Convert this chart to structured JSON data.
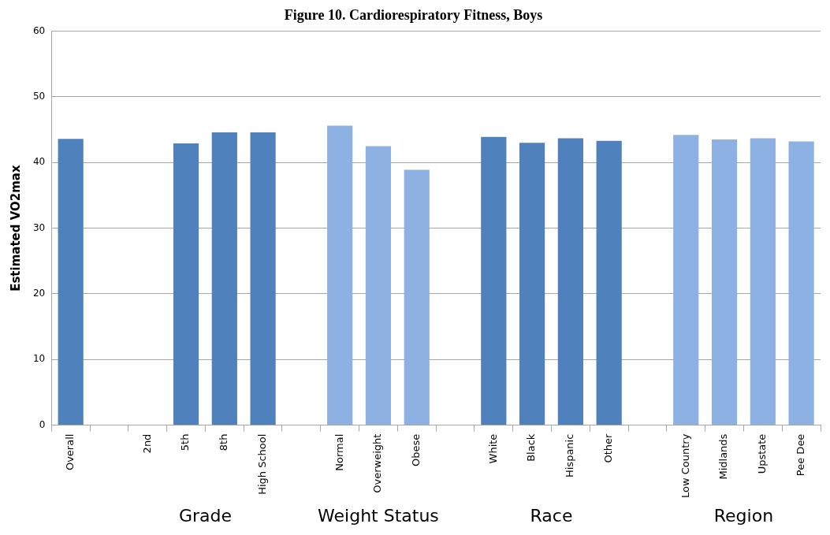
{
  "chart_data": {
    "type": "bar",
    "title": "Figure 10. Cardiorespiratory Fitness, Boys",
    "ylabel": "Estimated VO2max",
    "categories": [
      "Overall",
      null,
      "2nd",
      "5th",
      "8th",
      "High School",
      null,
      "Normal",
      "Overweight",
      "Obese",
      null,
      "White",
      "Black",
      "Hispanic",
      "Other",
      null,
      "Low Country",
      "Midlands",
      "Upstate",
      "Pee Dee"
    ],
    "values": [
      43.6,
      null,
      null,
      42.9,
      44.6,
      44.6,
      null,
      45.6,
      42.5,
      38.9,
      null,
      43.9,
      43.0,
      43.7,
      43.3,
      null,
      44.2,
      43.5,
      43.7,
      43.2
    ],
    "colors": [
      "#4f81bd",
      "#4f81bd",
      "#4f81bd",
      "#4f81bd",
      "#4f81bd",
      "#4f81bd",
      "#8db1e2",
      "#8db1e2",
      "#8db1e2",
      "#8db1e2",
      "#4f81bd",
      "#4f81bd",
      "#4f81bd",
      "#4f81bd",
      "#4f81bd",
      "#8db1e2",
      "#8db1e2",
      "#8db1e2",
      "#8db1e2",
      "#8db1e2"
    ],
    "annotations": [
      "Grade",
      "Weight Status",
      "Race",
      "Region"
    ],
    "ylim": [
      0,
      60
    ],
    "yticks": [
      0,
      10,
      20,
      30,
      40,
      50,
      60
    ],
    "grid": "y",
    "legend": false
  }
}
